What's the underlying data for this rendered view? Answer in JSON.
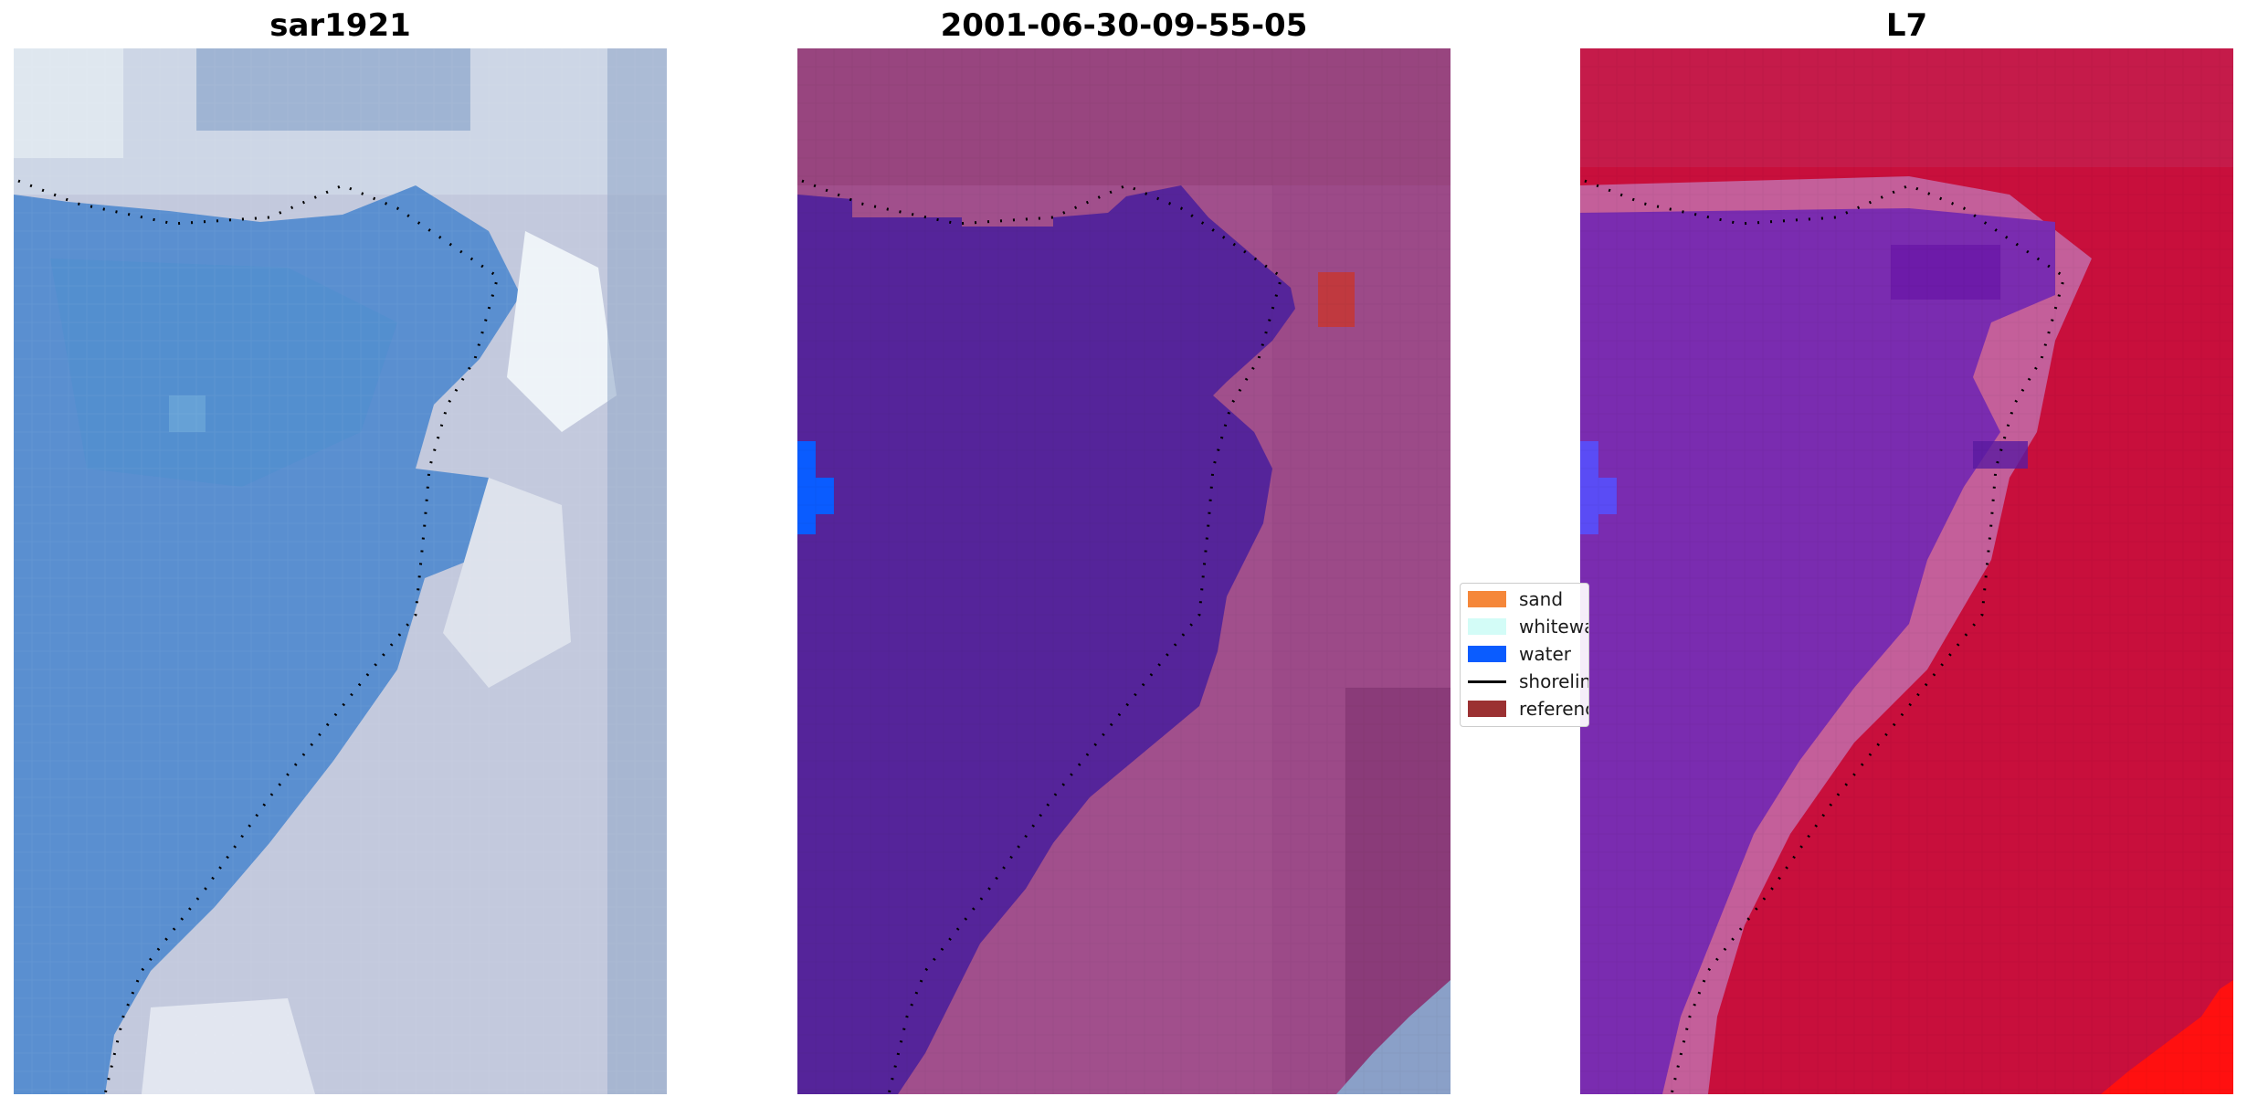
{
  "panels": [
    {
      "title": "sar1921"
    },
    {
      "title": "2001-06-30-09-55-05"
    },
    {
      "title": "L7"
    }
  ],
  "legend": {
    "items": [
      {
        "label": "sand",
        "color": "#f5873a",
        "kind": "patch"
      },
      {
        "label": "whitewater",
        "color": "#d3fcf7",
        "kind": "patch"
      },
      {
        "label": "water",
        "color": "#0a5cff",
        "kind": "patch"
      },
      {
        "label": "shoreline",
        "color": "#000000",
        "kind": "line"
      },
      {
        "label": "reference",
        "color": "#9b3132",
        "kind": "patch"
      }
    ]
  },
  "colors": {
    "water_class": "#55249a",
    "land_tint": "#a14f8c",
    "rgb_water": "#5a8fd0",
    "rgb_land": "#c3c9dd",
    "ndwi_water": "#7a2cb0",
    "ndwi_land": "#c80f3c",
    "reference_box": "#c0393f",
    "bright_water_patch": "#0a5cff"
  }
}
